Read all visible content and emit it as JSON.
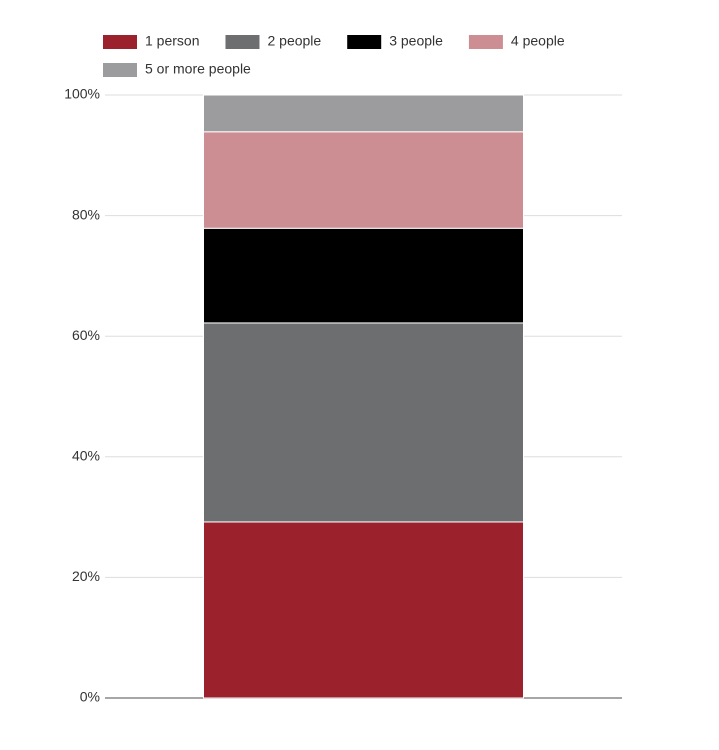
{
  "chart_data": {
    "type": "stacked_bar",
    "categories": [
      null
    ],
    "series": [
      {
        "name": "1 person",
        "color": "#9b212c",
        "values": [
          29.2
        ]
      },
      {
        "name": "2 people",
        "color": "#6d6e70",
        "values": [
          33.0
        ]
      },
      {
        "name": "3 people",
        "color": "#000000",
        "values": [
          15.7
        ]
      },
      {
        "name": "4 people",
        "color": "#cc8e93",
        "values": [
          16.0
        ]
      },
      {
        "name": "5 or more people",
        "color": "#9c9c9f",
        "values": [
          6.1
        ]
      }
    ],
    "ylim": [
      0,
      100
    ],
    "yticks": [
      {
        "value": 0,
        "label": "0%"
      },
      {
        "value": 20,
        "label": "20%"
      },
      {
        "value": 40,
        "label": "40%"
      },
      {
        "value": 60,
        "label": "60%"
      },
      {
        "value": 80,
        "label": "80%"
      },
      {
        "value": 100,
        "label": "100%"
      }
    ],
    "grid": true,
    "legend": "top"
  }
}
